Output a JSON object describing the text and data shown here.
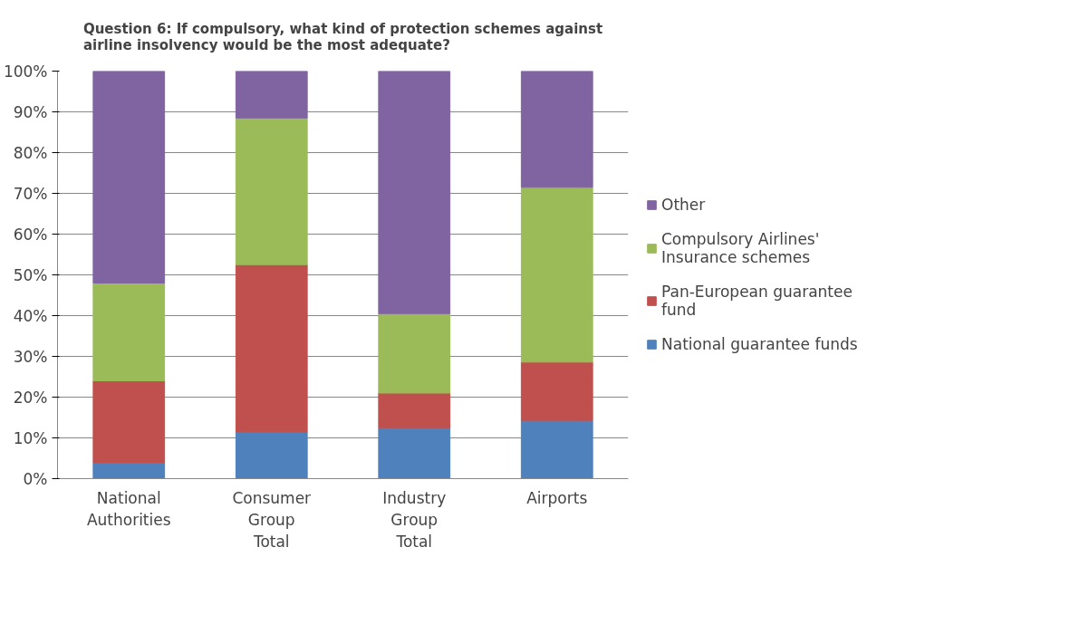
{
  "chart_data": {
    "type": "bar",
    "title": "Question 6: If compulsory, what kind of protection schemes against airline insolvency would be the most adequate?",
    "categories": [
      "National Authorities",
      "Consumer Group Total",
      "Industry Group Total",
      "Airports"
    ],
    "stacked": true,
    "series": [
      {
        "name": "National guarantee funds",
        "color": "#4f81bd",
        "values": [
          4,
          11.5,
          12.5,
          14.3
        ]
      },
      {
        "name": "Pan-European guarantee fund",
        "color": "#c0504d",
        "values": [
          20,
          41,
          8.5,
          14.3
        ]
      },
      {
        "name": "Compulsory Airlines' Insurance schemes",
        "color": "#9bbb59",
        "values": [
          24,
          36,
          19.5,
          42.9
        ]
      },
      {
        "name": "Other",
        "color": "#8064a2",
        "values": [
          52,
          11.5,
          59.5,
          28.5
        ]
      }
    ],
    "ylim": [
      0,
      100
    ],
    "yticks": [
      {
        "value": 0,
        "label": "0%"
      },
      {
        "value": 10,
        "label": "10%"
      },
      {
        "value": 20,
        "label": "20%"
      },
      {
        "value": 30,
        "label": "30%"
      },
      {
        "value": 40,
        "label": "40%"
      },
      {
        "value": 50,
        "label": "50%"
      },
      {
        "value": 60,
        "label": "60%"
      },
      {
        "value": 70,
        "label": "70%"
      },
      {
        "value": 80,
        "label": "80%"
      },
      {
        "value": 90,
        "label": "90%"
      },
      {
        "value": 100,
        "label": "100%"
      }
    ],
    "grid": "y",
    "legend": "right"
  }
}
